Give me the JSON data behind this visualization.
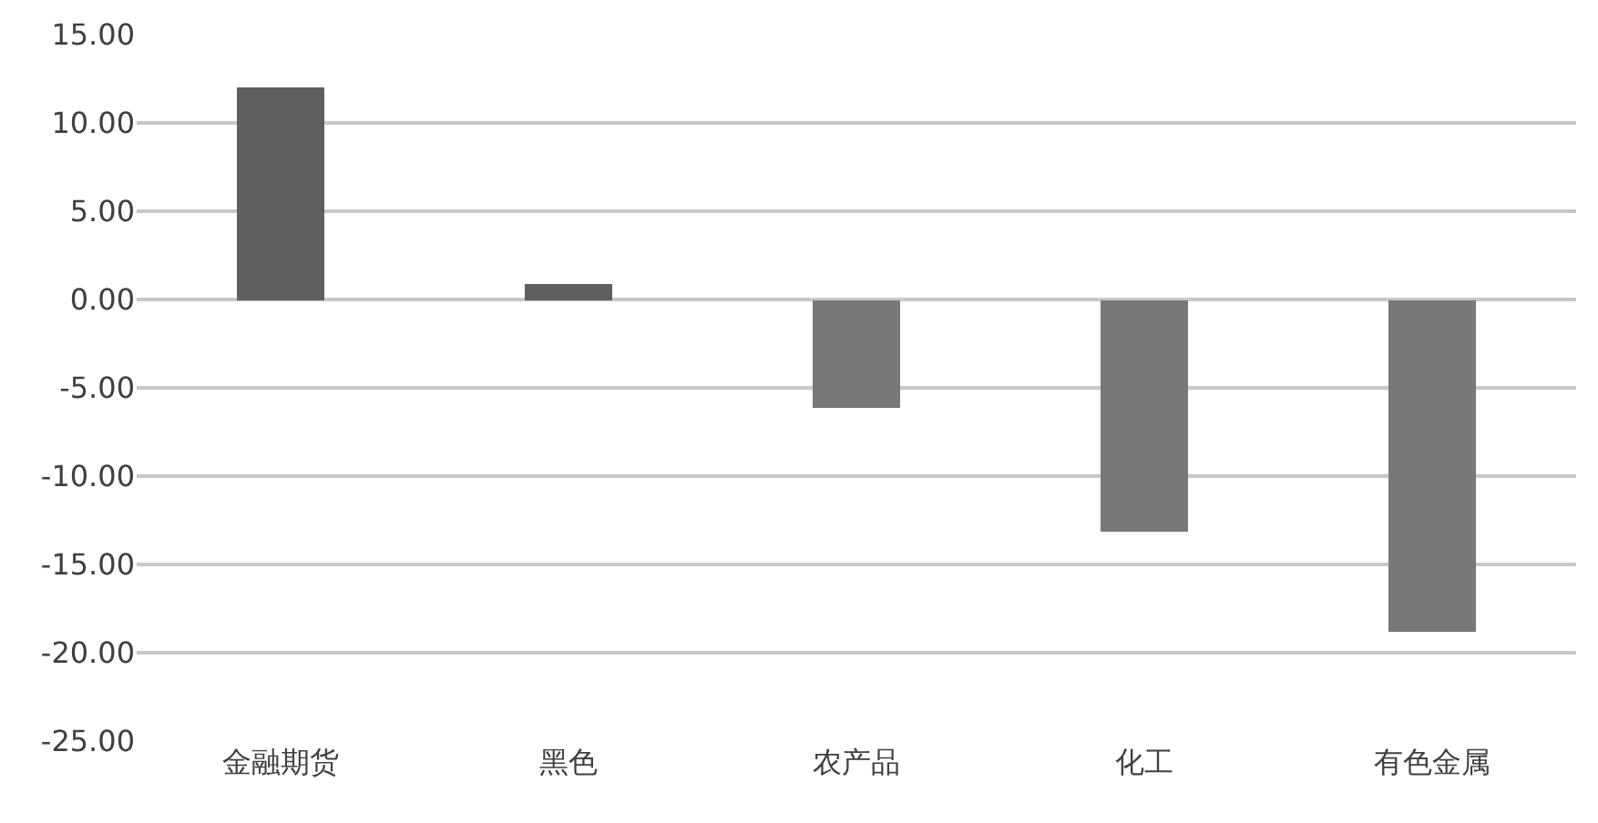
{
  "chart_data": {
    "type": "bar",
    "categories": [
      "金融期货",
      "黑色",
      "农产品",
      "化工",
      "有色金属"
    ],
    "values": [
      12.0,
      0.9,
      -6.1,
      -13.1,
      -18.8
    ],
    "colors": [
      "#5f5f5f",
      "#5f5f5f",
      "#787878",
      "#787878",
      "#787878"
    ],
    "ylim": [
      -25,
      15
    ],
    "yticks": [
      {
        "value": -25,
        "label": "-25.00"
      },
      {
        "value": -20,
        "label": "-20.00"
      },
      {
        "value": -15,
        "label": "-15.00"
      },
      {
        "value": -10,
        "label": "-10.00"
      },
      {
        "value": -5,
        "label": "-5.00"
      },
      {
        "value": 0,
        "label": "0.00"
      },
      {
        "value": 5,
        "label": "5.00"
      },
      {
        "value": 10,
        "label": "10.00"
      },
      {
        "value": 15,
        "label": "15.00"
      }
    ],
    "grid": "y"
  }
}
